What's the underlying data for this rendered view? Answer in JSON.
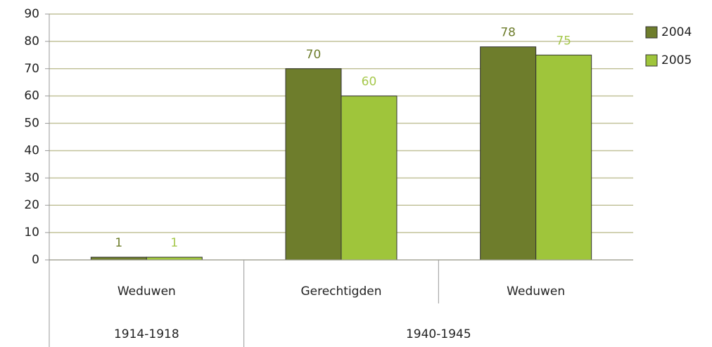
{
  "chart_data": {
    "type": "bar",
    "category_groups": [
      {
        "name": "1914-1918",
        "categories": [
          "Weduwen"
        ]
      },
      {
        "name": "1940-1945",
        "categories": [
          "Gerechtigden",
          "Weduwen"
        ]
      }
    ],
    "series": [
      {
        "name": "2004",
        "color": "#6e7d2c",
        "label_color": "#6e7d2c",
        "values": [
          1,
          70,
          78
        ]
      },
      {
        "name": "2005",
        "color": "#9fc53b",
        "label_color": "#a6c84c",
        "values": [
          1,
          60,
          75
        ]
      }
    ],
    "ylim": [
      0,
      90
    ],
    "yticks": [
      0,
      10,
      20,
      30,
      40,
      50,
      60,
      70,
      80,
      90
    ],
    "grid": true,
    "legend": "right"
  }
}
